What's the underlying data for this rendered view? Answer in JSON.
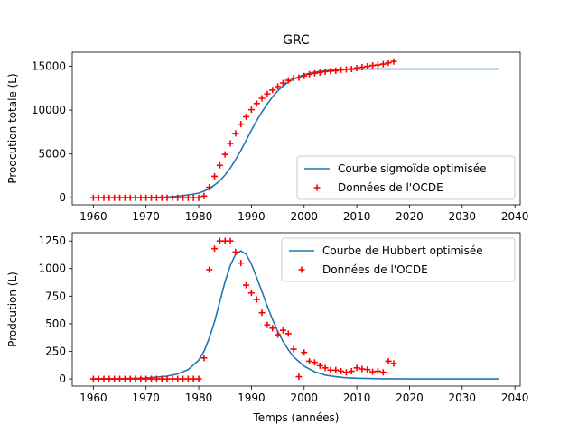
{
  "chart_data": [
    {
      "type": "line",
      "title": "GRC",
      "xlabel": "",
      "ylabel": "Prodcution totale (L)",
      "xlim": [
        1956,
        2041
      ],
      "ylim": [
        -800,
        16600
      ],
      "xticks": [
        1960,
        1970,
        1980,
        1990,
        2000,
        2010,
        2020,
        2030,
        2040
      ],
      "yticks": [
        0,
        5000,
        10000,
        15000
      ],
      "legend_position": "lower-right",
      "series": [
        {
          "name": "Courbe sigmoïde optimisée",
          "kind": "line",
          "color": "#1f77b4",
          "x": [
            1960,
            1965,
            1970,
            1974,
            1976,
            1978,
            1980,
            1981,
            1982,
            1983,
            1984,
            1985,
            1986,
            1987,
            1988,
            1989,
            1990,
            1991,
            1992,
            1993,
            1994,
            1995,
            1996,
            1997,
            1998,
            2000,
            2002,
            2004,
            2006,
            2008,
            2010,
            2015,
            2020,
            2025,
            2030,
            2037
          ],
          "y": [
            0,
            5,
            25,
            90,
            180,
            320,
            540,
            750,
            1050,
            1450,
            1950,
            2600,
            3400,
            4350,
            5400,
            6550,
            7700,
            8800,
            9800,
            10700,
            11500,
            12200,
            12750,
            13200,
            13550,
            14050,
            14350,
            14500,
            14600,
            14650,
            14680,
            14700,
            14700,
            14700,
            14700,
            14700
          ]
        },
        {
          "name": "Données de l'OCDE",
          "kind": "scatter",
          "color": "#ff0000",
          "x": [
            1960,
            1961,
            1962,
            1963,
            1964,
            1965,
            1966,
            1967,
            1968,
            1969,
            1970,
            1971,
            1972,
            1973,
            1974,
            1975,
            1976,
            1977,
            1978,
            1979,
            1980,
            1981,
            1982,
            1983,
            1984,
            1985,
            1986,
            1987,
            1988,
            1989,
            1990,
            1991,
            1992,
            1993,
            1994,
            1995,
            1996,
            1997,
            1998,
            1999,
            2000,
            2001,
            2002,
            2003,
            2004,
            2005,
            2006,
            2007,
            2008,
            2009,
            2010,
            2011,
            2012,
            2013,
            2014,
            2015,
            2016,
            2017
          ],
          "y": [
            0,
            0,
            0,
            0,
            0,
            0,
            0,
            0,
            0,
            0,
            0,
            0,
            0,
            0,
            0,
            0,
            0,
            0,
            0,
            0,
            0,
            200,
            1200,
            2450,
            3700,
            4950,
            6200,
            7350,
            8400,
            9250,
            10050,
            10750,
            11350,
            11850,
            12300,
            12700,
            13100,
            13400,
            13650,
            13700,
            13900,
            14100,
            14200,
            14300,
            14400,
            14450,
            14500,
            14600,
            14650,
            14700,
            14800,
            14900,
            15000,
            15100,
            15150,
            15250,
            15400,
            15550
          ]
        }
      ]
    },
    {
      "type": "line",
      "title": "",
      "xlabel": "Temps (années)",
      "ylabel": "Prodcution (L)",
      "xlim": [
        1956,
        2041
      ],
      "ylim": [
        -65,
        1325
      ],
      "xticks": [
        1960,
        1970,
        1980,
        1990,
        2000,
        2010,
        2020,
        2030,
        2040
      ],
      "yticks": [
        0,
        250,
        500,
        750,
        1000,
        1250
      ],
      "legend_position": "upper-right",
      "series": [
        {
          "name": "Courbe de Hubbert optimisée",
          "kind": "line",
          "color": "#1f77b4",
          "x": [
            1960,
            1965,
            1970,
            1974,
            1976,
            1978,
            1980,
            1981,
            1982,
            1983,
            1984,
            1985,
            1986,
            1987,
            1988,
            1989,
            1990,
            1991,
            1992,
            1993,
            1994,
            1995,
            1996,
            1997,
            1998,
            2000,
            2002,
            2004,
            2006,
            2008,
            2010,
            2015,
            2020,
            2025,
            2030,
            2037
          ],
          "y": [
            0,
            2,
            8,
            25,
            45,
            85,
            170,
            250,
            370,
            520,
            700,
            880,
            1030,
            1130,
            1160,
            1130,
            1040,
            920,
            790,
            660,
            540,
            430,
            340,
            265,
            200,
            115,
            65,
            35,
            20,
            10,
            6,
            1,
            0,
            0,
            0,
            0
          ]
        },
        {
          "name": "Données de l'OCDE",
          "kind": "scatter",
          "color": "#ff0000",
          "x": [
            1960,
            1961,
            1962,
            1963,
            1964,
            1965,
            1966,
            1967,
            1968,
            1969,
            1970,
            1971,
            1972,
            1973,
            1974,
            1975,
            1976,
            1977,
            1978,
            1979,
            1980,
            1981,
            1982,
            1983,
            1984,
            1985,
            1986,
            1987,
            1988,
            1989,
            1990,
            1991,
            1992,
            1993,
            1994,
            1995,
            1996,
            1997,
            1998,
            1999,
            2000,
            2001,
            2002,
            2003,
            2004,
            2005,
            2006,
            2007,
            2008,
            2009,
            2010,
            2011,
            2012,
            2013,
            2014,
            2015,
            2016,
            2017
          ],
          "y": [
            0,
            0,
            0,
            0,
            0,
            0,
            0,
            0,
            0,
            0,
            0,
            0,
            0,
            0,
            0,
            0,
            0,
            0,
            0,
            0,
            0,
            190,
            990,
            1180,
            1250,
            1250,
            1250,
            1150,
            1050,
            850,
            780,
            720,
            600,
            490,
            460,
            400,
            440,
            410,
            270,
            20,
            240,
            160,
            150,
            120,
            100,
            80,
            80,
            70,
            60,
            70,
            100,
            90,
            85,
            65,
            70,
            60,
            160,
            140
          ]
        }
      ]
    }
  ]
}
